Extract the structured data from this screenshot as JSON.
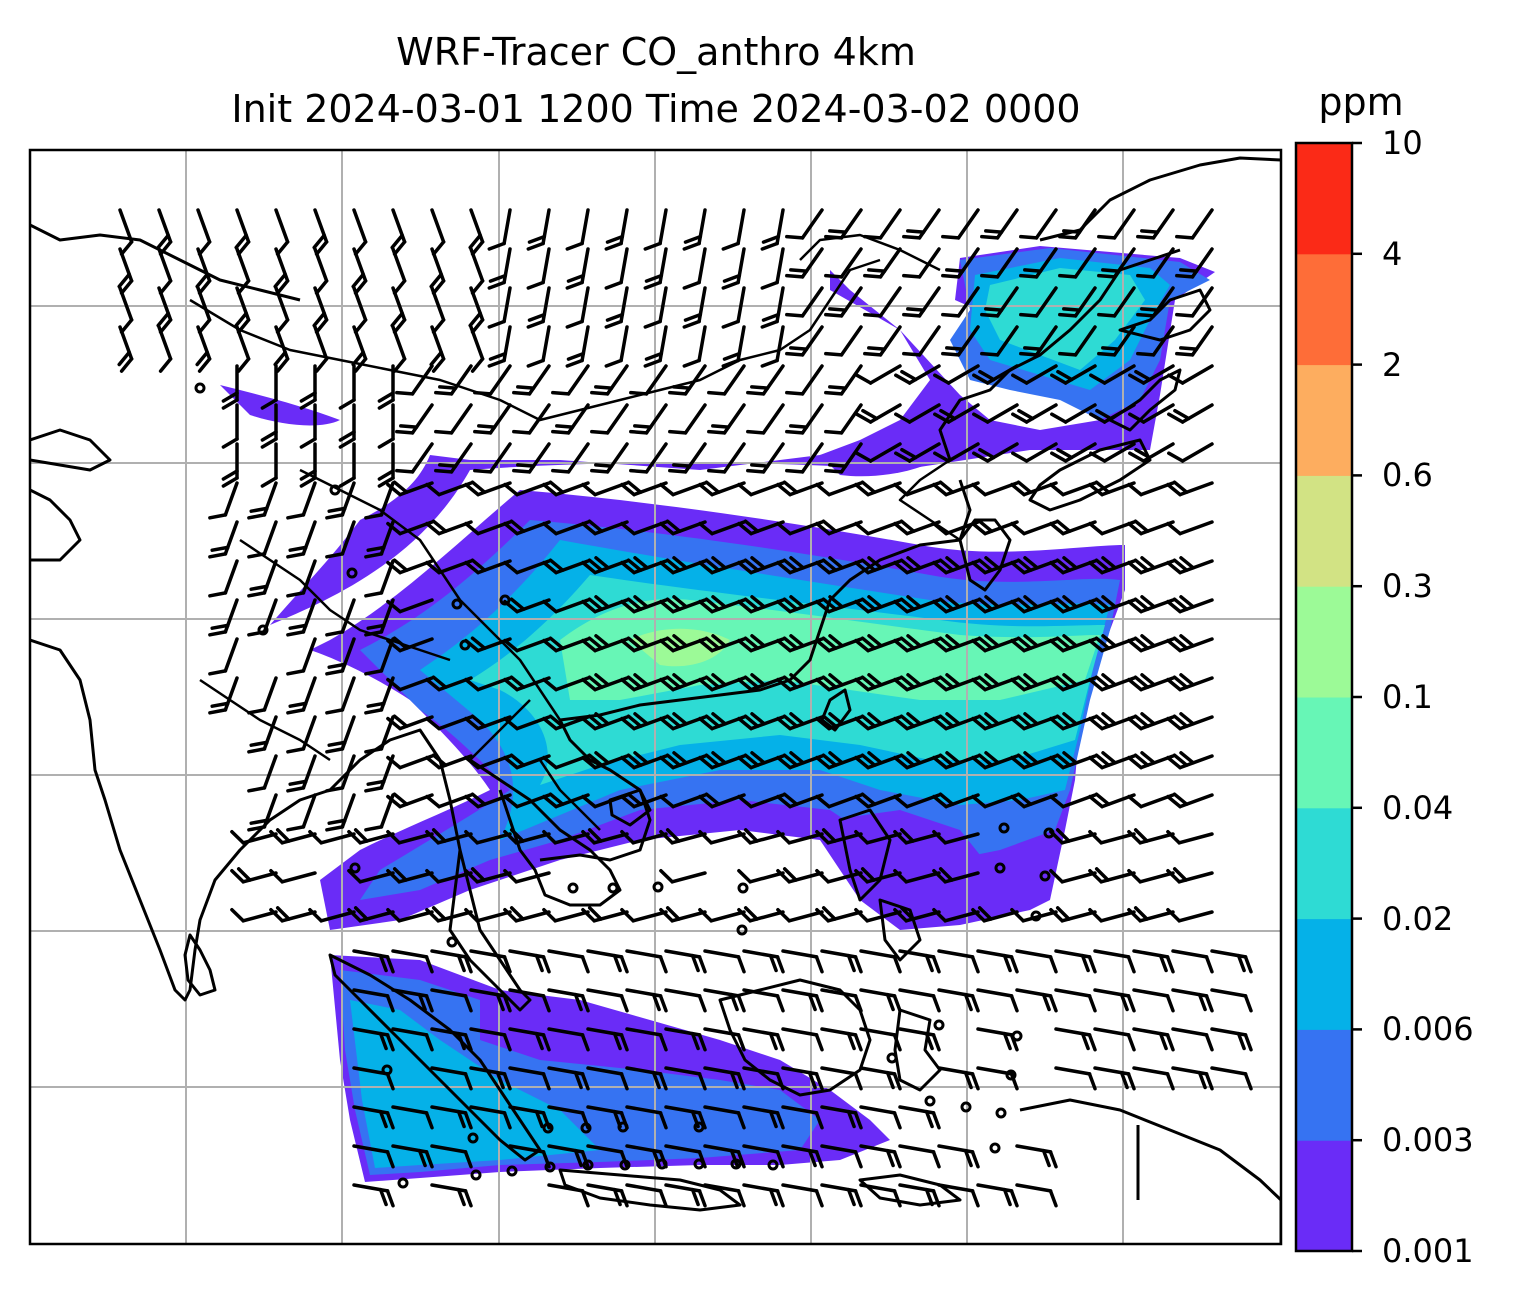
{
  "title_line1": "WRF-Tracer CO_anthro 4km",
  "title_line2": "Init 2024-03-01 1200 Time 2024-03-02 0000",
  "colorbar": {
    "unit": "ppm",
    "levels": [
      "0.001",
      "0.003",
      "0.006",
      "0.02",
      "0.04",
      "0.1",
      "0.3",
      "0.6",
      "2",
      "4",
      "10"
    ],
    "colors": [
      "#6a2cf7",
      "#3673f2",
      "#05b1e8",
      "#2edbd4",
      "#67f6b6",
      "#9cfa97",
      "#d2e384",
      "#fdad5f",
      "#fe6d38",
      "#fb2a17"
    ]
  },
  "map": {
    "gridlines": true,
    "layers": [
      "coastlines",
      "country-borders",
      "co-anthro-concentration",
      "wind-barbs",
      "calm-wind-circles"
    ]
  }
}
